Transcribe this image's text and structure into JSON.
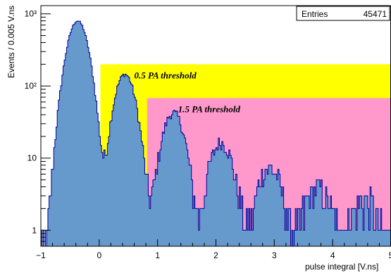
{
  "chart_data": {
    "type": "area",
    "x_axis": {
      "label": "pulse integral [V.ns]",
      "range": [
        -1,
        5
      ],
      "ticks": [
        {
          "value": -1,
          "label": "−1"
        },
        {
          "value": 0,
          "label": "0"
        },
        {
          "value": 1,
          "label": "1"
        },
        {
          "value": 2,
          "label": "2"
        },
        {
          "value": 3,
          "label": "3"
        },
        {
          "value": 4,
          "label": "4"
        },
        {
          "value": 5,
          "label": "5"
        }
      ]
    },
    "y_axis": {
      "label": "Events / 0.005 V.ns",
      "scale": "log",
      "range": [
        0.6,
        1300
      ],
      "ticks": [
        {
          "value": 1,
          "label": "1"
        },
        {
          "value": 10,
          "label": "10"
        },
        {
          "value": 100,
          "label": "10²"
        },
        {
          "value": 1000,
          "label": "10³"
        }
      ]
    },
    "stats_box": {
      "label": "Entries",
      "value": "45471"
    },
    "thresholds": [
      {
        "label": "0.5 PA threshold",
        "x": 0.02,
        "level": 200,
        "color": "#ffff00"
      },
      {
        "label": "1.5 PA threshold",
        "x": 0.82,
        "level": 68,
        "color": "#ff99cc"
      }
    ],
    "peaks": [
      {
        "center": -0.37,
        "height": 800,
        "sigma": 0.14
      },
      {
        "center": 0.44,
        "height": 145,
        "sigma": 0.14
      },
      {
        "center": 1.27,
        "height": 42,
        "sigma": 0.15
      },
      {
        "center": 2.09,
        "height": 16,
        "sigma": 0.16
      },
      {
        "center": 2.92,
        "height": 7,
        "sigma": 0.17
      },
      {
        "center": 3.74,
        "height": 3.5,
        "sigma": 0.18
      },
      {
        "center": 4.56,
        "height": 2.2,
        "sigma": 0.2
      }
    ],
    "colors": {
      "fill": "#6699cc",
      "line": "#000099"
    }
  }
}
